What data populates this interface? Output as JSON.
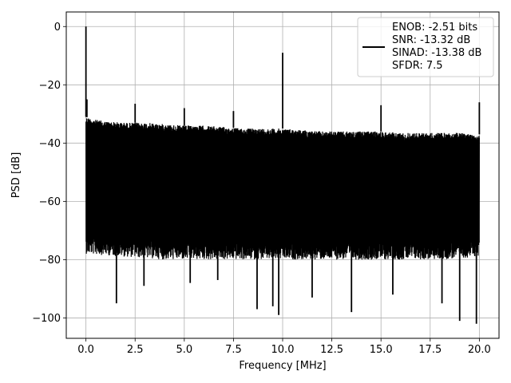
{
  "chart_data": {
    "type": "line",
    "xlabel": "Frequency [MHz]",
    "ylabel": "PSD [dB]",
    "xlim": [
      -1.0,
      21.0
    ],
    "ylim": [
      -107.0,
      5.0
    ],
    "xticks": [
      0.0,
      2.5,
      5.0,
      7.5,
      10.0,
      12.5,
      15.0,
      17.5,
      20.0
    ],
    "xtick_labels": [
      "0.0",
      "2.5",
      "5.0",
      "7.5",
      "10.0",
      "12.5",
      "15.0",
      "17.5",
      "20.0"
    ],
    "yticks": [
      0,
      -20,
      -40,
      -60,
      -80,
      -100
    ],
    "ytick_labels": [
      "0",
      "−20",
      "−40",
      "−60",
      "−80",
      "−100"
    ],
    "grid": true,
    "legend_position": "top-right",
    "legend_entries": [
      "ENOB: -2.51 bits",
      "SNR: -13.32 dB",
      "SINAD: -13.38 dB",
      "SFDR: 7.5"
    ],
    "series": [
      {
        "color": "#000000",
        "upper_envelope_x": [
          0.0,
          0.5,
          1.0,
          2.0,
          3.0,
          4.0,
          5.0,
          6.0,
          7.0,
          8.0,
          9.0,
          10.0,
          11.0,
          12.0,
          13.0,
          14.0,
          15.0,
          16.0,
          17.0,
          18.0,
          19.0,
          20.0
        ],
        "upper_envelope_y": [
          -31,
          -32,
          -32.5,
          -33,
          -33,
          -33.5,
          -34,
          -34,
          -34.5,
          -35,
          -35,
          -35,
          -35.5,
          -36,
          -36,
          -36,
          -36,
          -36.5,
          -36.5,
          -36.5,
          -36.5,
          -37
        ],
        "lower_envelope_x": [
          0.0,
          2.0,
          4.0,
          6.0,
          8.0,
          10.0,
          12.0,
          14.0,
          16.0,
          18.0,
          20.0
        ],
        "lower_envelope_y": [
          -72,
          -73,
          -74,
          -74,
          -74,
          -74,
          -74,
          -74,
          -74,
          -74,
          -73
        ],
        "spikes": [
          {
            "x": 0.0,
            "y": 0
          },
          {
            "x": 0.05,
            "y": -25
          },
          {
            "x": 2.5,
            "y": -26.5
          },
          {
            "x": 5.0,
            "y": -28
          },
          {
            "x": 7.5,
            "y": -29
          },
          {
            "x": 10.0,
            "y": -9
          },
          {
            "x": 15.0,
            "y": -27
          },
          {
            "x": 20.0,
            "y": -26
          }
        ],
        "dips": [
          {
            "x": 1.55,
            "y": -95
          },
          {
            "x": 2.95,
            "y": -89
          },
          {
            "x": 5.3,
            "y": -88
          },
          {
            "x": 6.7,
            "y": -87
          },
          {
            "x": 8.7,
            "y": -97
          },
          {
            "x": 9.5,
            "y": -96
          },
          {
            "x": 9.8,
            "y": -99
          },
          {
            "x": 11.5,
            "y": -93
          },
          {
            "x": 13.5,
            "y": -98
          },
          {
            "x": 15.6,
            "y": -92
          },
          {
            "x": 18.1,
            "y": -95
          },
          {
            "x": 19.0,
            "y": -101
          },
          {
            "x": 19.85,
            "y": -102
          }
        ]
      }
    ]
  }
}
